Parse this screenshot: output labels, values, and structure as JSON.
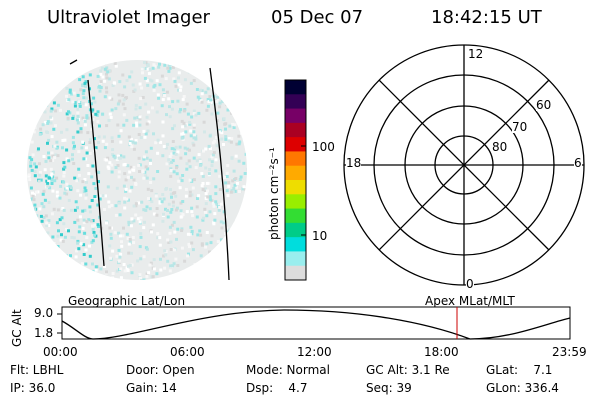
{
  "header": {
    "instrument": "Ultraviolet Imager",
    "date": "05 Dec 07",
    "time": "18:42:15 UT"
  },
  "colorbar": {
    "unit_label": "photon cm⁻²s⁻¹",
    "ticks": [
      "100",
      "10"
    ],
    "colors": [
      "#000033",
      "#330055",
      "#770066",
      "#aa0022",
      "#dd0000",
      "#ff7700",
      "#ffaa00",
      "#eedd00",
      "#99ee00",
      "#33dd33",
      "#00cc88",
      "#00dddd",
      "#99eeee",
      "#dddddd"
    ]
  },
  "polar": {
    "clock_labels": [
      "12",
      "18",
      "6",
      "0"
    ],
    "lat_labels": [
      "60",
      "70",
      "80"
    ]
  },
  "alt_plot": {
    "left_title": "Geographic Lat/Lon",
    "right_title": "Apex MLat/MLT",
    "ylabel": "GC Alt",
    "yticks": [
      "9.0",
      "1.8"
    ],
    "xticks": [
      "00:00",
      "06:00",
      "12:00",
      "18:00",
      "23:59"
    ],
    "marker_color": "#cc0000"
  },
  "status": {
    "flt": "Flt: LBHL",
    "ip": "IP: 36.0",
    "door": "Door: Open",
    "gain": "Gain: 14",
    "mode": "Mode: Normal",
    "dsp": "Dsp:    4.7",
    "gcalt": "GC Alt: 3.1 Re",
    "seq": "Seq: 39",
    "glat": "GLat:    7.1",
    "glon": "GLon: 336.4"
  }
}
